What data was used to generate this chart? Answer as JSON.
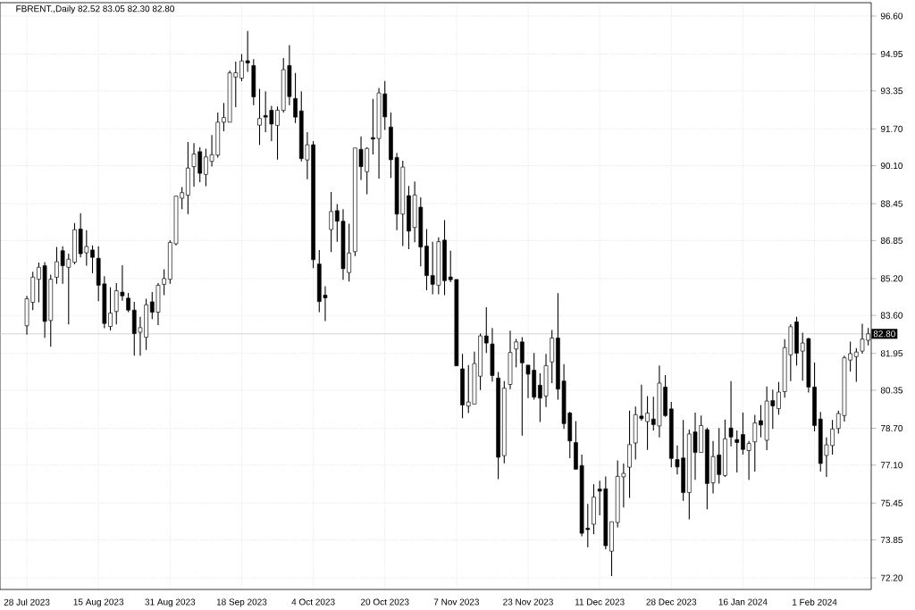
{
  "chart_data": {
    "type": "candlestick",
    "title": "FBRENT.,Daily  82.52 83.05 82.30 82.80",
    "categories": [
      "28 Jul 2023",
      null,
      null,
      null,
      null,
      null,
      null,
      null,
      null,
      null,
      null,
      null,
      "15 Aug 2023",
      null,
      null,
      null,
      null,
      null,
      null,
      null,
      null,
      null,
      null,
      null,
      "31 Aug 2023",
      null,
      null,
      null,
      null,
      null,
      null,
      null,
      null,
      null,
      null,
      null,
      "18 Sep 2023",
      null,
      null,
      null,
      null,
      null,
      null,
      null,
      null,
      null,
      null,
      null,
      "4 Oct 2023",
      null,
      null,
      null,
      null,
      null,
      null,
      null,
      null,
      null,
      null,
      null,
      "20 Oct 2023",
      null,
      null,
      null,
      null,
      null,
      null,
      null,
      null,
      null,
      null,
      null,
      "7 Nov 2023",
      null,
      null,
      null,
      null,
      null,
      null,
      null,
      null,
      null,
      null,
      null,
      "23 Nov 2023",
      null,
      null,
      null,
      null,
      null,
      null,
      null,
      null,
      null,
      null,
      null,
      "11 Dec 2023",
      null,
      null,
      null,
      null,
      null,
      null,
      null,
      null,
      null,
      null,
      null,
      "28 Dec 2023",
      null,
      null,
      null,
      null,
      null,
      null,
      null,
      null,
      null,
      null,
      null,
      "16 Jan 2024",
      null,
      null,
      null,
      null,
      null,
      null,
      null,
      null,
      null,
      null,
      null,
      "1 Feb 2024",
      null,
      null,
      null,
      null,
      null,
      null,
      null,
      null,
      null
    ],
    "ohlc": [
      [
        83.15,
        84.45,
        82.76,
        84.32
      ],
      [
        84.17,
        85.5,
        83.83,
        85.26
      ],
      [
        85.17,
        85.89,
        84.17,
        85.69
      ],
      [
        85.76,
        85.91,
        82.63,
        83.34
      ],
      [
        83.38,
        85.37,
        82.24,
        85.17
      ],
      [
        85.26,
        86.57,
        84.97,
        85.93
      ],
      [
        86.41,
        86.6,
        84.97,
        85.76
      ],
      [
        85.69,
        86.28,
        83.21,
        86.04
      ],
      [
        85.91,
        87.61,
        85.82,
        87.32
      ],
      [
        87.35,
        88.04,
        86.12,
        86.28
      ],
      [
        86.32,
        87.3,
        85.76,
        86.59
      ],
      [
        86.44,
        86.64,
        85.43,
        86.12
      ],
      [
        86.08,
        86.6,
        84.22,
        84.91
      ],
      [
        84.97,
        85.3,
        83.04,
        83.25
      ],
      [
        83.12,
        84.82,
        82.95,
        83.7
      ],
      [
        83.77,
        85.0,
        83.21,
        84.67
      ],
      [
        84.61,
        85.78,
        84.24,
        84.45
      ],
      [
        84.35,
        84.58,
        83.74,
        83.83
      ],
      [
        83.83,
        84.19,
        81.85,
        82.81
      ],
      [
        82.87,
        83.54,
        81.85,
        83.07
      ],
      [
        82.65,
        84.32,
        82.1,
        84.06
      ],
      [
        84.19,
        84.61,
        83.44,
        83.74
      ],
      [
        83.74,
        85.0,
        83.18,
        84.91
      ],
      [
        84.95,
        85.6,
        84.48,
        85.2
      ],
      [
        85.17,
        86.86,
        84.97,
        86.77
      ],
      [
        86.71,
        88.78,
        86.64,
        88.78
      ],
      [
        88.69,
        89.17,
        88.21,
        88.93
      ],
      [
        88.82,
        91.13,
        88.0,
        90.0
      ],
      [
        90.06,
        91.08,
        89.19,
        90.61
      ],
      [
        90.71,
        90.91,
        89.38,
        89.77
      ],
      [
        89.72,
        90.84,
        89.21,
        90.48
      ],
      [
        90.29,
        91.43,
        90.06,
        90.58
      ],
      [
        90.56,
        92.41,
        90.45,
        91.99
      ],
      [
        91.99,
        92.83,
        91.6,
        92.19
      ],
      [
        91.99,
        94.23,
        91.99,
        94.13
      ],
      [
        93.95,
        94.62,
        92.64,
        94.14
      ],
      [
        93.9,
        94.95,
        93.77,
        94.65
      ],
      [
        94.66,
        95.95,
        94.17,
        94.56
      ],
      [
        94.45,
        94.73,
        92.73,
        93.09
      ],
      [
        91.86,
        93.44,
        91.0,
        92.15
      ],
      [
        92.28,
        93.33,
        91.56,
        92.21
      ],
      [
        92.51,
        92.7,
        91.17,
        91.91
      ],
      [
        91.85,
        92.67,
        90.36,
        92.51
      ],
      [
        92.5,
        94.78,
        92.41,
        94.27
      ],
      [
        94.45,
        95.34,
        92.73,
        93.1
      ],
      [
        93.02,
        94.13,
        91.95,
        92.21
      ],
      [
        92.48,
        93.33,
        90.29,
        90.41
      ],
      [
        90.35,
        91.56,
        89.51,
        91.01
      ],
      [
        91.01,
        91.17,
        85.65,
        86.02
      ],
      [
        85.83,
        86.44,
        83.74,
        84.2
      ],
      [
        84.48,
        84.87,
        83.35,
        84.36
      ],
      [
        87.33,
        88.96,
        86.35,
        88.11
      ],
      [
        88.15,
        88.43,
        86.8,
        87.69
      ],
      [
        87.69,
        88.21,
        85.15,
        85.63
      ],
      [
        85.46,
        87.58,
        85.07,
        86.31
      ],
      [
        86.37,
        90.87,
        86.18,
        90.87
      ],
      [
        90.81,
        91.37,
        89.48,
        90.06
      ],
      [
        89.84,
        90.91,
        88.86,
        90.85
      ],
      [
        91.32,
        93.0,
        90.59,
        91.26
      ],
      [
        91.28,
        93.48,
        89.54,
        93.26
      ],
      [
        93.22,
        93.78,
        91.65,
        92.22
      ],
      [
        91.78,
        92.41,
        89.57,
        90.36
      ],
      [
        90.46,
        90.65,
        87.3,
        88.0
      ],
      [
        88.0,
        90.32,
        86.61,
        90.04
      ],
      [
        88.8,
        89.22,
        86.48,
        87.26
      ],
      [
        87.42,
        89.41,
        86.78,
        88.83
      ],
      [
        88.3,
        88.73,
        85.73,
        86.57
      ],
      [
        86.61,
        87.35,
        84.69,
        85.33
      ],
      [
        85.33,
        86.8,
        84.52,
        84.95
      ],
      [
        84.91,
        86.99,
        84.52,
        86.8
      ],
      [
        86.87,
        87.74,
        84.48,
        85.11
      ],
      [
        85.27,
        86.41,
        85.04,
        85.15
      ],
      [
        85.16,
        85.16,
        81.41,
        81.41
      ],
      [
        81.28,
        81.93,
        79.14,
        79.71
      ],
      [
        79.66,
        81.44,
        79.36,
        79.84
      ],
      [
        79.75,
        82.03,
        79.75,
        81.51
      ],
      [
        80.96,
        82.81,
        80.36,
        82.71
      ],
      [
        82.71,
        83.96,
        81.97,
        82.4
      ],
      [
        82.36,
        83.05,
        80.73,
        80.99
      ],
      [
        80.88,
        81.14,
        76.49,
        77.44
      ],
      [
        77.51,
        80.75,
        77.18,
        80.44
      ],
      [
        80.6,
        82.94,
        80.4,
        81.99
      ],
      [
        82.14,
        82.58,
        81.35,
        82.45
      ],
      [
        82.45,
        82.66,
        78.38,
        81.54
      ],
      [
        81.44,
        81.44,
        80.01,
        81.05
      ],
      [
        81.22,
        81.97,
        79.94,
        80.05
      ],
      [
        80.57,
        81.09,
        78.97,
        80.01
      ],
      [
        80.1,
        81.93,
        79.62,
        81.42
      ],
      [
        81.58,
        82.97,
        80.66,
        82.62
      ],
      [
        82.62,
        84.57,
        79.94,
        80.4
      ],
      [
        80.75,
        81.48,
        78.67,
        78.9
      ],
      [
        79.36,
        79.42,
        77.4,
        78.15
      ],
      [
        78.08,
        79.01,
        76.92,
        76.92
      ],
      [
        77.08,
        77.56,
        74.01,
        74.14
      ],
      [
        74.36,
        75.41,
        73.53,
        74.3
      ],
      [
        74.53,
        76.27,
        74.1,
        75.71
      ],
      [
        76.06,
        76.42,
        74.92,
        75.97
      ],
      [
        76.07,
        76.61,
        73.45,
        73.6
      ],
      [
        73.36,
        74.64,
        72.28,
        74.64
      ],
      [
        74.61,
        77.3,
        74.4,
        76.61
      ],
      [
        76.59,
        77.17,
        75.26,
        76.74
      ],
      [
        77.01,
        79.47,
        75.68,
        77.99
      ],
      [
        78.06,
        79.64,
        77.34,
        79.29
      ],
      [
        79.23,
        80.59,
        79.03,
        79.12
      ],
      [
        78.99,
        80.1,
        77.76,
        79.36
      ],
      [
        79.1,
        80.07,
        78.6,
        78.86
      ],
      [
        78.8,
        81.42,
        78.3,
        80.66
      ],
      [
        80.49,
        81.01,
        79.19,
        79.25
      ],
      [
        79.54,
        79.84,
        77.0,
        77.39
      ],
      [
        77.34,
        77.95,
        76.69,
        77.02
      ],
      [
        77.41,
        79.06,
        75.55,
        75.91
      ],
      [
        75.91,
        78.64,
        74.74,
        78.45
      ],
      [
        78.54,
        79.38,
        76.46,
        77.65
      ],
      [
        77.65,
        79.25,
        77.65,
        78.82
      ],
      [
        78.64,
        78.73,
        75.18,
        76.3
      ],
      [
        76.33,
        78.15,
        75.87,
        77.47
      ],
      [
        77.54,
        78.71,
        76.3,
        76.69
      ],
      [
        76.65,
        79.08,
        76.59,
        78.24
      ],
      [
        78.71,
        80.75,
        77.91,
        78.32
      ],
      [
        78.21,
        78.6,
        76.78,
        78.08
      ],
      [
        78.43,
        79.38,
        77.56,
        77.78
      ],
      [
        77.73,
        78.15,
        76.46,
        78.04
      ],
      [
        78.11,
        79.28,
        76.82,
        78.93
      ],
      [
        79.03,
        79.71,
        78.3,
        78.84
      ],
      [
        78.18,
        80.51,
        77.75,
        79.88
      ],
      [
        79.9,
        80.38,
        78.67,
        79.67
      ],
      [
        79.55,
        80.71,
        79.29,
        80.27
      ],
      [
        80.29,
        82.57,
        80.03,
        82.2
      ],
      [
        81.89,
        83.22,
        80.75,
        83.11
      ],
      [
        83.32,
        83.54,
        81.42,
        81.96
      ],
      [
        82.05,
        82.85,
        80.77,
        82.4
      ],
      [
        82.59,
        82.63,
        80.25,
        80.49
      ],
      [
        80.49,
        81.55,
        78.56,
        78.82
      ],
      [
        79.1,
        79.41,
        76.82,
        77.17
      ],
      [
        77.52,
        78.3,
        76.59,
        77.98
      ],
      [
        77.95,
        79.06,
        77.56,
        78.67
      ],
      [
        78.69,
        79.47,
        78.47,
        79.34
      ],
      [
        79.25,
        81.85,
        78.99,
        81.76
      ],
      [
        81.66,
        82.46,
        81.16,
        81.94
      ],
      [
        81.81,
        82.18,
        80.72,
        82.01
      ],
      [
        82.05,
        83.24,
        81.94,
        82.57
      ],
      [
        82.52,
        83.05,
        82.3,
        82.8
      ]
    ],
    "color": "#000000",
    "ylim": [
      71.7,
      97.18
    ],
    "yticks": [
      {
        "value": 72.2,
        "label": "72.20"
      },
      {
        "value": 73.85,
        "label": "73.85"
      },
      {
        "value": 75.45,
        "label": "75.45"
      },
      {
        "value": 77.1,
        "label": "77.10"
      },
      {
        "value": 78.7,
        "label": "78.70"
      },
      {
        "value": 80.35,
        "label": "80.35"
      },
      {
        "value": 81.95,
        "label": "81.95"
      },
      {
        "value": 83.6,
        "label": "83.60"
      },
      {
        "value": 85.2,
        "label": "85.20"
      },
      {
        "value": 86.85,
        "label": "86.85"
      },
      {
        "value": 88.45,
        "label": "88.45"
      },
      {
        "value": 90.1,
        "label": "90.10"
      },
      {
        "value": 91.7,
        "label": "91.70"
      },
      {
        "value": 93.35,
        "label": "93.35"
      },
      {
        "value": 94.95,
        "label": "94.95"
      },
      {
        "value": 96.6,
        "label": "96.60"
      }
    ],
    "ref_lines": [
      {
        "axis": "y",
        "value": 82.8,
        "label": "82.80",
        "color": "#c0c0c0"
      }
    ],
    "grid": true
  }
}
